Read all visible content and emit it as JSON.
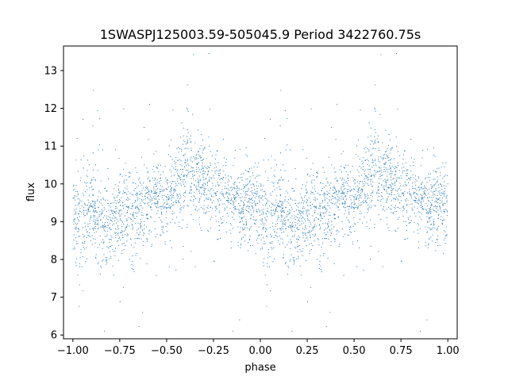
{
  "chart_data": {
    "type": "scatter",
    "title": "1SWASPJ125003.59-505045.9 Period 3422760.75s",
    "xlabel": "phase",
    "ylabel": "flux",
    "xlim": [
      -1.05,
      1.05
    ],
    "ylim": [
      5.9,
      13.65
    ],
    "xticks": [
      -1.0,
      -0.75,
      -0.5,
      -0.25,
      0.0,
      0.25,
      0.5,
      0.75,
      1.0
    ],
    "xtick_labels": [
      "−1.00",
      "−0.75",
      "−0.50",
      "−0.25",
      "0.00",
      "0.25",
      "0.50",
      "0.75",
      "1.00"
    ],
    "yticks": [
      6,
      7,
      8,
      9,
      10,
      11,
      12,
      13
    ],
    "ytick_labels": [
      "6",
      "7",
      "8",
      "9",
      "10",
      "11",
      "12",
      "13"
    ],
    "grid": false,
    "legend": "none",
    "marker_color": "#1f77b4",
    "series": [
      {
        "note_on_values": "folded light curve; phase in [-1,1], the same cycle repeated with period 1",
        "profile": {
          "phase": [
            0.0,
            0.05,
            0.1,
            0.15,
            0.2,
            0.25,
            0.3,
            0.35,
            0.4,
            0.45,
            0.5,
            0.55,
            0.6,
            0.65,
            0.7,
            0.75,
            0.8,
            0.85,
            0.9,
            0.95,
            1.0
          ],
          "mean_flux": [
            9.3,
            8.9,
            9.3,
            9.0,
            8.9,
            9.2,
            9.1,
            9.3,
            9.5,
            9.6,
            9.7,
            9.9,
            10.3,
            10.2,
            10.0,
            10.0,
            9.8,
            9.5,
            9.4,
            9.5,
            9.3
          ],
          "scatter": [
            0.55,
            0.75,
            0.5,
            0.65,
            0.6,
            0.55,
            0.65,
            0.55,
            0.5,
            0.5,
            0.5,
            0.5,
            0.7,
            0.55,
            0.55,
            0.5,
            0.55,
            0.5,
            0.5,
            0.55,
            0.55
          ]
        }
      }
    ]
  }
}
